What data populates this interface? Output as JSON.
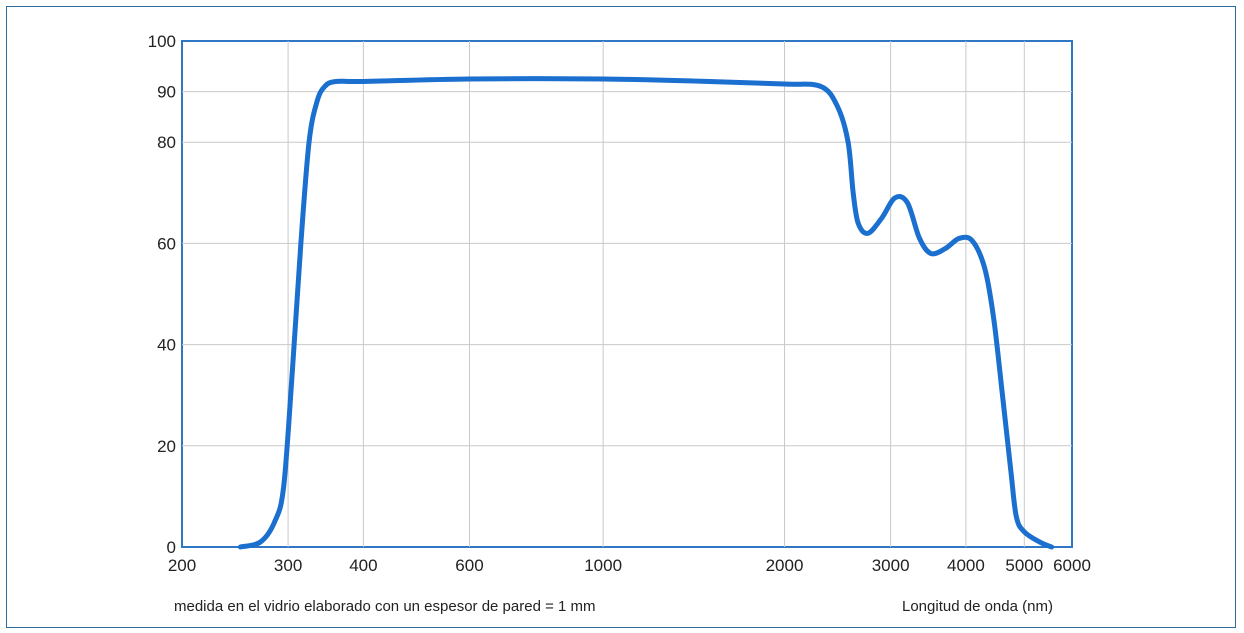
{
  "chart_data": {
    "type": "line",
    "title": "",
    "xlabel": "Longitud de onda (nm)",
    "ylabel": "",
    "note": "medida en el vidrio elaborado con un espesor de pared = 1 mm",
    "x_scale": "log",
    "xlim": [
      200,
      6000
    ],
    "ylim": [
      0,
      100
    ],
    "x_ticks": [
      200,
      300,
      400,
      600,
      1000,
      2000,
      3000,
      4000,
      5000,
      6000
    ],
    "x_tick_labels": [
      "200",
      "300",
      "400",
      "600",
      "1000",
      "2000",
      "3000",
      "4000",
      "5000",
      "6000"
    ],
    "y_ticks": [
      0,
      20,
      40,
      60,
      80,
      90,
      100
    ],
    "y_tick_labels": [
      "0",
      "20",
      "40",
      "60",
      "80",
      "90",
      "100"
    ],
    "grid": true,
    "series": [
      {
        "color": "#1a6fcf",
        "x": [
          250,
          270,
          285,
          295,
          305,
          315,
          325,
          335,
          345,
          360,
          400,
          600,
          1000,
          1500,
          2000,
          2300,
          2450,
          2550,
          2600,
          2650,
          2750,
          2900,
          3050,
          3200,
          3350,
          3500,
          3700,
          3900,
          4100,
          4300,
          4450,
          4600,
          4750,
          4850,
          5000,
          5300,
          5550
        ],
        "y": [
          0,
          1,
          5,
          12,
          35,
          60,
          80,
          88,
          91,
          92,
          92,
          92.5,
          92.5,
          92,
          91.5,
          91,
          87,
          80,
          70,
          64,
          62,
          65,
          69,
          68,
          61,
          58,
          59,
          61,
          60.5,
          55,
          45,
          30,
          15,
          6,
          3,
          1,
          0
        ]
      }
    ]
  }
}
